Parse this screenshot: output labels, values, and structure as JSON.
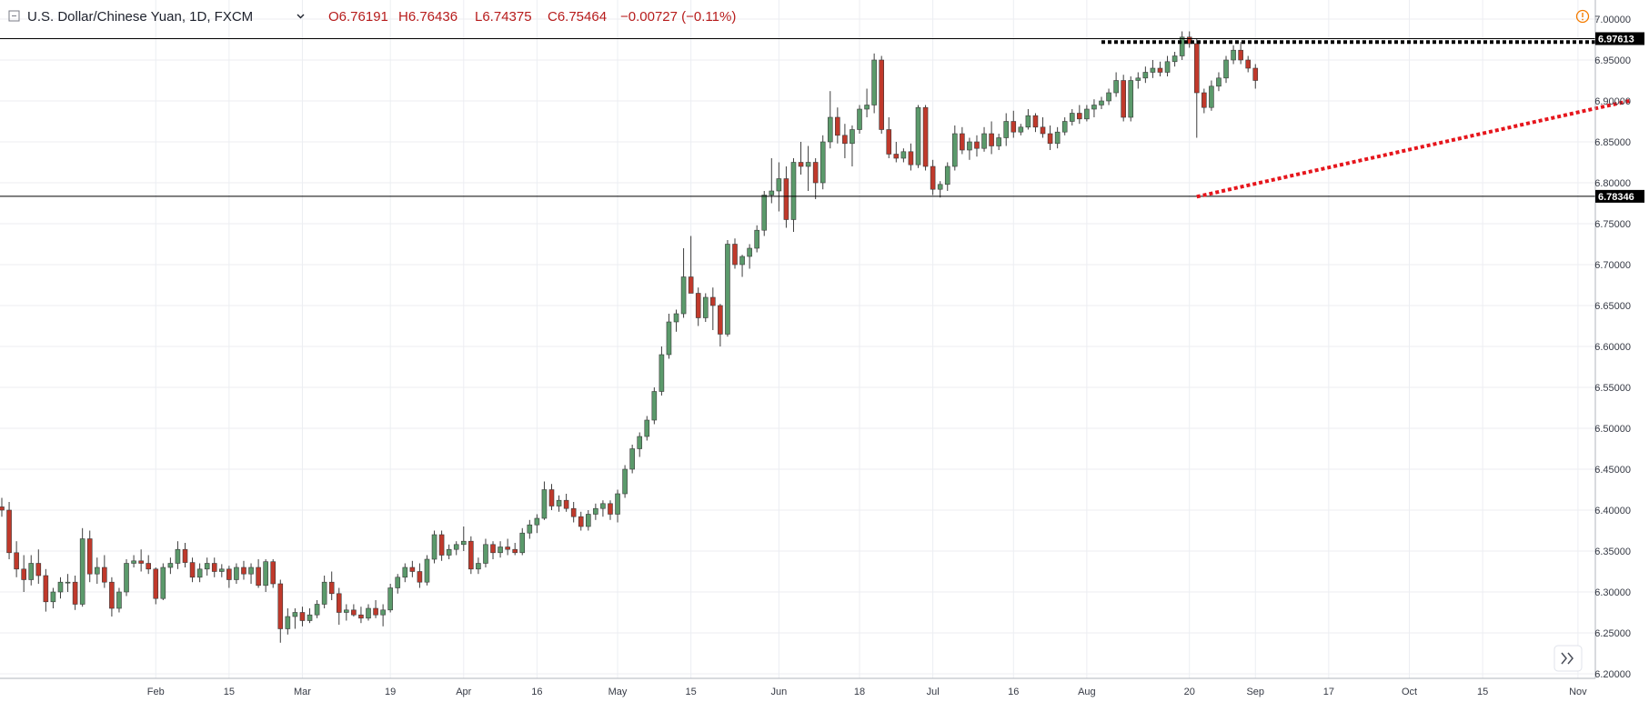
{
  "header": {
    "symbol": "U.S. Dollar/Chinese Yuan, 1D, FXCM",
    "open": "O6.76191",
    "high": "H6.76436",
    "low": "L6.74375",
    "close": "C6.75464",
    "change": "−0.00727 (−0.11%)"
  },
  "icons": {
    "collapse": "collapse-square-icon",
    "chevron": "chevron-down-icon",
    "alert": "alert-circle-icon",
    "scroll": "scroll-to-realtime-icon"
  },
  "colors": {
    "up": "#5b9a6b",
    "down": "#c0392b",
    "support_line": "#e6151c",
    "resistance_line": "#000000",
    "ohlc_text": "#b71c1c",
    "alert": "#f57c00"
  },
  "chart_data": {
    "type": "candlestick",
    "title": "U.S. Dollar/Chinese Yuan, 1D, FXCM",
    "ylim": [
      6.2,
      7.0
    ],
    "y_ticks": [
      "7.00000",
      "6.95000",
      "6.90000",
      "6.85000",
      "6.80000",
      "6.75000",
      "6.70000",
      "6.65000",
      "6.60000",
      "6.55000",
      "6.50000",
      "6.45000",
      "6.40000",
      "6.35000",
      "6.30000",
      "6.25000",
      "6.20000"
    ],
    "x_ticks": [
      {
        "label": "Feb",
        "bar": 21
      },
      {
        "label": "15",
        "bar": 31
      },
      {
        "label": "Mar",
        "bar": 41
      },
      {
        "label": "19",
        "bar": 53
      },
      {
        "label": "Apr",
        "bar": 63
      },
      {
        "label": "16",
        "bar": 73
      },
      {
        "label": "May",
        "bar": 84
      },
      {
        "label": "15",
        "bar": 94
      },
      {
        "label": "Jun",
        "bar": 106
      },
      {
        "label": "18",
        "bar": 117
      },
      {
        "label": "Jul",
        "bar": 127
      },
      {
        "label": "16",
        "bar": 138
      },
      {
        "label": "Aug",
        "bar": 148
      },
      {
        "label": "20",
        "bar": 162
      },
      {
        "label": "Sep",
        "bar": 171
      },
      {
        "label": "17",
        "bar": 181
      },
      {
        "label": "Oct",
        "bar": 192
      },
      {
        "label": "15",
        "bar": 202
      },
      {
        "label": "Nov",
        "bar": 215
      }
    ],
    "horizontal_levels": [
      {
        "label": "6.97613",
        "value": 6.97613
      },
      {
        "label": "6.78346",
        "value": 6.78346
      }
    ],
    "resistance_dotted": {
      "from_bar": 150,
      "to_bar": 224,
      "value": 6.972
    },
    "support_trendline": {
      "from_bar": 163,
      "from_value": 6.783,
      "to_bar": 222,
      "to_value": 6.9
    },
    "candles": [
      [
        6.404,
        6.415,
        6.392,
        6.4
      ],
      [
        6.4,
        6.41,
        6.34,
        6.348
      ],
      [
        6.348,
        6.362,
        6.318,
        6.328
      ],
      [
        6.328,
        6.345,
        6.3,
        6.315
      ],
      [
        6.315,
        6.345,
        6.308,
        6.335
      ],
      [
        6.335,
        6.352,
        6.31,
        6.32
      ],
      [
        6.32,
        6.328,
        6.276,
        6.288
      ],
      [
        6.288,
        6.305,
        6.28,
        6.3
      ],
      [
        6.3,
        6.318,
        6.292,
        6.312
      ],
      [
        6.312,
        6.322,
        6.3,
        6.312
      ],
      [
        6.312,
        6.32,
        6.278,
        6.285
      ],
      [
        6.285,
        6.378,
        6.282,
        6.365
      ],
      [
        6.365,
        6.375,
        6.312,
        6.322
      ],
      [
        6.322,
        6.342,
        6.31,
        6.33
      ],
      [
        6.33,
        6.345,
        6.305,
        6.312
      ],
      [
        6.312,
        6.318,
        6.27,
        6.28
      ],
      [
        6.28,
        6.305,
        6.275,
        6.3
      ],
      [
        6.3,
        6.34,
        6.295,
        6.335
      ],
      [
        6.335,
        6.345,
        6.33,
        6.338
      ],
      [
        6.338,
        6.352,
        6.325,
        6.335
      ],
      [
        6.335,
        6.345,
        6.322,
        6.328
      ],
      [
        6.328,
        6.33,
        6.285,
        6.292
      ],
      [
        6.292,
        6.335,
        6.29,
        6.33
      ],
      [
        6.33,
        6.342,
        6.322,
        6.335
      ],
      [
        6.335,
        6.362,
        6.328,
        6.352
      ],
      [
        6.352,
        6.36,
        6.33,
        6.336
      ],
      [
        6.336,
        6.342,
        6.312,
        6.318
      ],
      [
        6.318,
        6.335,
        6.312,
        6.328
      ],
      [
        6.328,
        6.342,
        6.32,
        6.335
      ],
      [
        6.335,
        6.342,
        6.318,
        6.325
      ],
      [
        6.325,
        6.334,
        6.318,
        6.328
      ],
      [
        6.328,
        6.332,
        6.305,
        6.315
      ],
      [
        6.315,
        6.335,
        6.31,
        6.33
      ],
      [
        6.33,
        6.338,
        6.315,
        6.322
      ],
      [
        6.322,
        6.335,
        6.31,
        6.33
      ],
      [
        6.33,
        6.34,
        6.305,
        6.308
      ],
      [
        6.308,
        6.34,
        6.3,
        6.337
      ],
      [
        6.337,
        6.34,
        6.305,
        6.31
      ],
      [
        6.31,
        6.315,
        6.238,
        6.255
      ],
      [
        6.255,
        6.28,
        6.248,
        6.27
      ],
      [
        6.27,
        6.28,
        6.255,
        6.275
      ],
      [
        6.275,
        6.282,
        6.258,
        6.265
      ],
      [
        6.265,
        6.28,
        6.262,
        6.272
      ],
      [
        6.272,
        6.29,
        6.268,
        6.285
      ],
      [
        6.285,
        6.32,
        6.28,
        6.312
      ],
      [
        6.312,
        6.325,
        6.29,
        6.298
      ],
      [
        6.298,
        6.305,
        6.26,
        6.275
      ],
      [
        6.275,
        6.285,
        6.265,
        6.278
      ],
      [
        6.278,
        6.285,
        6.27,
        6.272
      ],
      [
        6.272,
        6.282,
        6.262,
        6.268
      ],
      [
        6.268,
        6.285,
        6.265,
        6.28
      ],
      [
        6.28,
        6.29,
        6.268,
        6.272
      ],
      [
        6.272,
        6.285,
        6.258,
        6.278
      ],
      [
        6.278,
        6.31,
        6.275,
        6.305
      ],
      [
        6.305,
        6.322,
        6.298,
        6.318
      ],
      [
        6.318,
        6.335,
        6.312,
        6.33
      ],
      [
        6.33,
        6.338,
        6.318,
        6.325
      ],
      [
        6.325,
        6.335,
        6.305,
        6.312
      ],
      [
        6.312,
        6.345,
        6.308,
        6.34
      ],
      [
        6.34,
        6.375,
        6.335,
        6.37
      ],
      [
        6.37,
        6.375,
        6.338,
        6.345
      ],
      [
        6.345,
        6.358,
        6.34,
        6.352
      ],
      [
        6.352,
        6.362,
        6.345,
        6.358
      ],
      [
        6.358,
        6.38,
        6.35,
        6.362
      ],
      [
        6.362,
        6.368,
        6.322,
        6.328
      ],
      [
        6.328,
        6.342,
        6.322,
        6.335
      ],
      [
        6.335,
        6.365,
        6.33,
        6.358
      ],
      [
        6.358,
        6.362,
        6.34,
        6.348
      ],
      [
        6.348,
        6.362,
        6.342,
        6.355
      ],
      [
        6.355,
        6.365,
        6.345,
        6.352
      ],
      [
        6.352,
        6.36,
        6.345,
        6.348
      ],
      [
        6.348,
        6.378,
        6.345,
        6.372
      ],
      [
        6.372,
        6.388,
        6.365,
        6.382
      ],
      [
        6.382,
        6.395,
        6.372,
        6.39
      ],
      [
        6.39,
        6.435,
        6.388,
        6.425
      ],
      [
        6.425,
        6.432,
        6.4,
        6.405
      ],
      [
        6.405,
        6.418,
        6.398,
        6.412
      ],
      [
        6.412,
        6.42,
        6.398,
        6.402
      ],
      [
        6.402,
        6.41,
        6.385,
        6.392
      ],
      [
        6.392,
        6.398,
        6.375,
        6.38
      ],
      [
        6.38,
        6.4,
        6.375,
        6.395
      ],
      [
        6.395,
        6.408,
        6.388,
        6.402
      ],
      [
        6.402,
        6.412,
        6.392,
        6.408
      ],
      [
        6.408,
        6.412,
        6.388,
        6.395
      ],
      [
        6.395,
        6.425,
        6.385,
        6.42
      ],
      [
        6.42,
        6.455,
        6.415,
        6.45
      ],
      [
        6.45,
        6.48,
        6.445,
        6.475
      ],
      [
        6.475,
        6.495,
        6.465,
        6.49
      ],
      [
        6.49,
        6.515,
        6.485,
        6.51
      ],
      [
        6.51,
        6.55,
        6.505,
        6.545
      ],
      [
        6.545,
        6.6,
        6.54,
        6.59
      ],
      [
        6.59,
        6.64,
        6.585,
        6.63
      ],
      [
        6.63,
        6.645,
        6.618,
        6.64
      ],
      [
        6.64,
        6.72,
        6.635,
        6.685
      ],
      [
        6.685,
        6.735,
        6.665,
        6.665
      ],
      [
        6.665,
        6.672,
        6.625,
        6.635
      ],
      [
        6.635,
        6.665,
        6.63,
        6.66
      ],
      [
        6.66,
        6.672,
        6.62,
        6.65
      ],
      [
        6.65,
        6.652,
        6.6,
        6.615
      ],
      [
        6.615,
        6.73,
        6.612,
        6.725
      ],
      [
        6.725,
        6.732,
        6.695,
        6.7
      ],
      [
        6.7,
        6.712,
        6.685,
        6.71
      ],
      [
        6.71,
        6.725,
        6.695,
        6.72
      ],
      [
        6.72,
        6.748,
        6.715,
        6.742
      ],
      [
        6.742,
        6.79,
        6.735,
        6.785
      ],
      [
        6.785,
        6.83,
        6.775,
        6.79
      ],
      [
        6.79,
        6.825,
        6.765,
        6.805
      ],
      [
        6.805,
        6.82,
        6.745,
        6.755
      ],
      [
        6.755,
        6.83,
        6.74,
        6.825
      ],
      [
        6.825,
        6.85,
        6.81,
        6.82
      ],
      [
        6.82,
        6.845,
        6.79,
        6.825
      ],
      [
        6.825,
        6.83,
        6.78,
        6.8
      ],
      [
        6.8,
        6.858,
        6.792,
        6.85
      ],
      [
        6.85,
        6.912,
        6.842,
        6.88
      ],
      [
        6.88,
        6.892,
        6.848,
        6.858
      ],
      [
        6.858,
        6.872,
        6.83,
        6.848
      ],
      [
        6.848,
        6.87,
        6.82,
        6.865
      ],
      [
        6.865,
        6.895,
        6.86,
        6.89
      ],
      [
        6.89,
        6.915,
        6.88,
        6.895
      ],
      [
        6.895,
        6.958,
        6.885,
        6.95
      ],
      [
        6.95,
        6.955,
        6.86,
        6.865
      ],
      [
        6.865,
        6.88,
        6.83,
        6.835
      ],
      [
        6.835,
        6.85,
        6.825,
        6.83
      ],
      [
        6.83,
        6.842,
        6.825,
        6.838
      ],
      [
        6.838,
        6.848,
        6.815,
        6.822
      ],
      [
        6.822,
        6.895,
        6.818,
        6.892
      ],
      [
        6.892,
        6.895,
        6.815,
        6.82
      ],
      [
        6.82,
        6.828,
        6.785,
        6.792
      ],
      [
        6.792,
        6.802,
        6.782,
        6.798
      ],
      [
        6.798,
        6.825,
        6.79,
        6.82
      ],
      [
        6.82,
        6.87,
        6.815,
        6.86
      ],
      [
        6.86,
        6.868,
        6.835,
        6.84
      ],
      [
        6.84,
        6.855,
        6.828,
        6.85
      ],
      [
        6.85,
        6.858,
        6.832,
        6.842
      ],
      [
        6.842,
        6.868,
        6.838,
        6.86
      ],
      [
        6.86,
        6.875,
        6.835,
        6.845
      ],
      [
        6.845,
        6.86,
        6.84,
        6.855
      ],
      [
        6.855,
        6.885,
        6.845,
        6.875
      ],
      [
        6.875,
        6.888,
        6.855,
        6.862
      ],
      [
        6.862,
        6.872,
        6.858,
        6.868
      ],
      [
        6.868,
        6.89,
        6.865,
        6.882
      ],
      [
        6.882,
        6.885,
        6.862,
        6.868
      ],
      [
        6.868,
        6.88,
        6.855,
        6.86
      ],
      [
        6.86,
        6.87,
        6.84,
        6.848
      ],
      [
        6.848,
        6.868,
        6.842,
        6.862
      ],
      [
        6.862,
        6.88,
        6.858,
        6.875
      ],
      [
        6.875,
        6.89,
        6.87,
        6.885
      ],
      [
        6.885,
        6.895,
        6.872,
        6.878
      ],
      [
        6.878,
        6.895,
        6.875,
        6.89
      ],
      [
        6.89,
        6.902,
        6.88,
        6.895
      ],
      [
        6.895,
        6.905,
        6.89,
        6.9
      ],
      [
        6.9,
        6.915,
        6.895,
        6.91
      ],
      [
        6.91,
        6.935,
        6.905,
        6.925
      ],
      [
        6.925,
        6.932,
        6.875,
        6.88
      ],
      [
        6.88,
        6.93,
        6.875,
        6.925
      ],
      [
        6.925,
        6.935,
        6.915,
        6.928
      ],
      [
        6.928,
        6.942,
        6.922,
        6.935
      ],
      [
        6.935,
        6.95,
        6.928,
        6.94
      ],
      [
        6.94,
        6.948,
        6.93,
        6.935
      ],
      [
        6.935,
        6.955,
        6.93,
        6.948
      ],
      [
        6.948,
        6.96,
        6.942,
        6.955
      ],
      [
        6.955,
        6.985,
        6.95,
        6.978
      ],
      [
        6.978,
        6.985,
        6.965,
        6.97
      ],
      [
        6.97,
        6.976,
        6.855,
        6.91
      ],
      [
        6.91,
        6.915,
        6.885,
        6.892
      ],
      [
        6.892,
        6.925,
        6.888,
        6.918
      ],
      [
        6.918,
        6.935,
        6.912,
        6.928
      ],
      [
        6.928,
        6.955,
        6.922,
        6.95
      ],
      [
        6.95,
        6.968,
        6.945,
        6.962
      ],
      [
        6.962,
        6.972,
        6.945,
        6.95
      ],
      [
        6.95,
        6.955,
        6.935,
        6.94
      ],
      [
        6.94,
        6.945,
        6.915,
        6.925
      ]
    ]
  }
}
